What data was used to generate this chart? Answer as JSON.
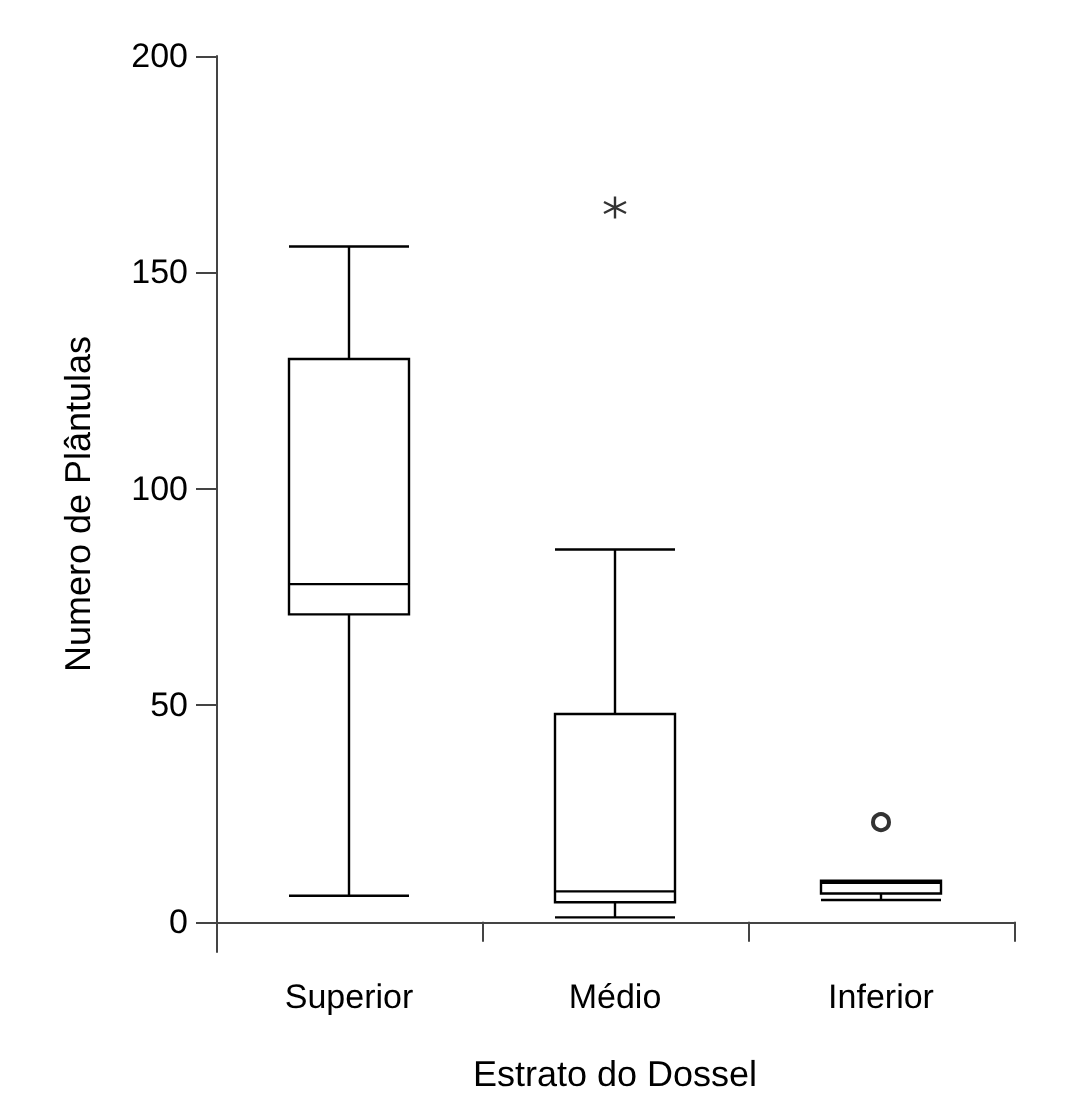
{
  "chart_data": {
    "type": "box",
    "xlabel": "Estrato do Dossel",
    "ylabel": "Numero de Plântulas",
    "categories": [
      "Superior",
      "Médio",
      "Inferior"
    ],
    "ylim": [
      -7,
      200
    ],
    "yticks": [
      0,
      50,
      100,
      150,
      200
    ],
    "grid": false,
    "boxes": [
      {
        "low": 6,
        "q1": 71,
        "median": 78,
        "q3": 130,
        "high": 156
      },
      {
        "low": 1,
        "q1": 4.5,
        "median": 7,
        "q3": 48,
        "high": 86
      },
      {
        "low": 5,
        "q1": 6.5,
        "median": 9,
        "q3": 9.5,
        "high": 9.5
      }
    ],
    "series": [
      {
        "type": "scatter",
        "marker": "cross",
        "color": "#000000",
        "x": [
          "Médio"
        ],
        "values": [
          165
        ]
      },
      {
        "type": "scatter",
        "marker": "circle",
        "color": "#000000",
        "x": [
          "Inferior"
        ],
        "values": [
          23
        ]
      }
    ]
  }
}
